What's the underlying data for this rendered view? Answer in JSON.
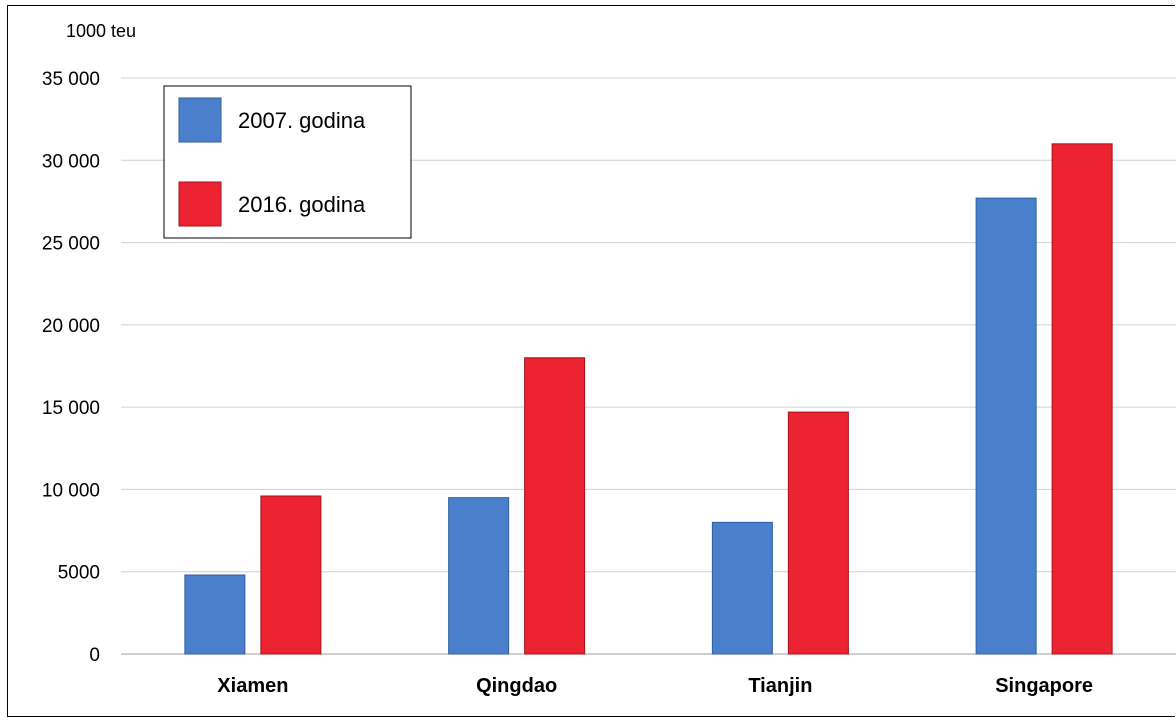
{
  "chart_data": {
    "type": "bar",
    "unit_label": "1000 teu",
    "categories": [
      "Xiamen",
      "Qingdao",
      "Tianjin",
      "Singapore"
    ],
    "series": [
      {
        "name": "2007. godina",
        "color": "#4a7fcb",
        "values": [
          4800,
          9500,
          8000,
          27700
        ]
      },
      {
        "name": "2016. godina",
        "color": "#ec2330",
        "values": [
          9600,
          18000,
          14700,
          31000
        ]
      }
    ],
    "ylim": [
      0,
      35000
    ],
    "yticks": [
      0,
      5000,
      10000,
      15000,
      20000,
      25000,
      30000,
      35000
    ],
    "ytick_labels": [
      "0",
      "5000",
      "10 000",
      "15 000",
      "20 000",
      "25 000",
      "30 000",
      "35 000"
    ],
    "grid": true,
    "legend_position": "top-left"
  }
}
